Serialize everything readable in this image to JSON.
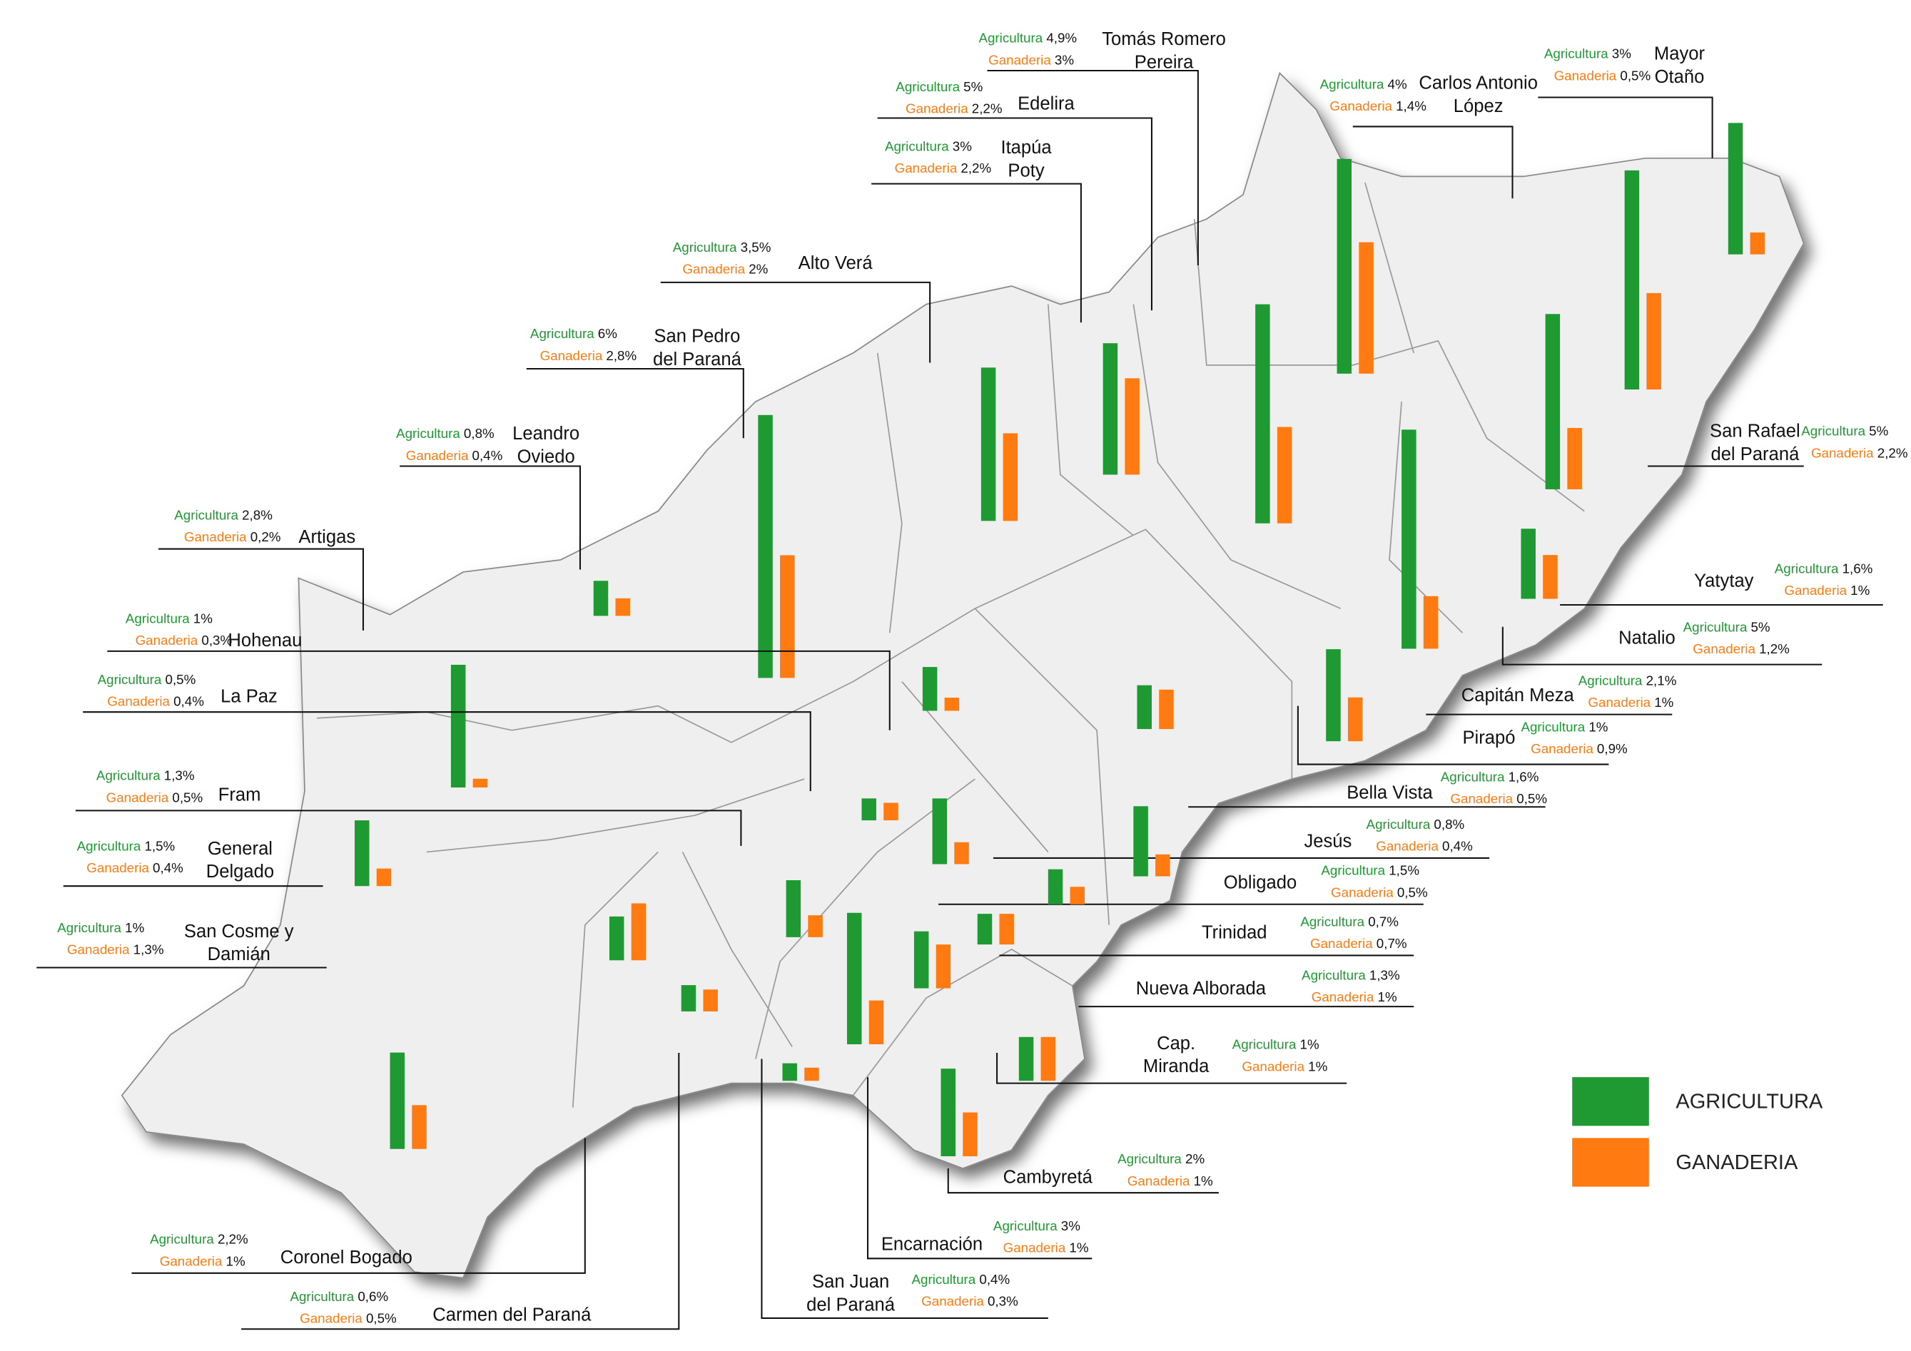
{
  "districts": [
    {
      "name": [
        "Tomás Romero",
        "Pereira"
      ],
      "agricultura": {
        "label": "Agricultura",
        "value": 4.9,
        "value_label": "4,9%"
      },
      "ganaderia": {
        "label": "Ganaderia",
        "value": 3,
        "value_label": "3%"
      }
    },
    {
      "name": [
        "Edelira"
      ],
      "agricultura": {
        "label": "Agricultura",
        "value": 5,
        "value_label": "5%"
      },
      "ganaderia": {
        "label": "Ganaderia",
        "value": 2.2,
        "value_label": "2,2%"
      }
    },
    {
      "name": [
        "Itapúa",
        "Poty"
      ],
      "agricultura": {
        "label": "Agricultura",
        "value": 3,
        "value_label": "3%"
      },
      "ganaderia": {
        "label": "Ganaderia",
        "value": 2.2,
        "value_label": "2,2%"
      }
    },
    {
      "name": [
        "Alto Verá"
      ],
      "agricultura": {
        "label": "Agricultura",
        "value": 3.5,
        "value_label": "3,5%"
      },
      "ganaderia": {
        "label": "Ganaderia",
        "value": 2,
        "value_label": "2%"
      }
    },
    {
      "name": [
        "San Pedro",
        "del Paraná"
      ],
      "agricultura": {
        "label": "Agricultura",
        "value": 6,
        "value_label": "6%"
      },
      "ganaderia": {
        "label": "Ganaderia",
        "value": 2.8,
        "value_label": "2,8%"
      }
    },
    {
      "name": [
        "Leandro",
        "Oviedo"
      ],
      "agricultura": {
        "label": "Agricultura",
        "value": 0.8,
        "value_label": "0,8%"
      },
      "ganaderia": {
        "label": "Ganaderia",
        "value": 0.4,
        "value_label": "0,4%"
      }
    },
    {
      "name": [
        "Artigas"
      ],
      "agricultura": {
        "label": "Agricultura",
        "value": 2.8,
        "value_label": "2,8%"
      },
      "ganaderia": {
        "label": "Ganaderia",
        "value": 0.2,
        "value_label": "0,2%"
      }
    },
    {
      "name": [
        "Hohenau"
      ],
      "agricultura": {
        "label": "Agricultura",
        "value": 1,
        "value_label": "1%"
      },
      "ganaderia": {
        "label": "Ganaderia",
        "value": 0.3,
        "value_label": "0,3%"
      }
    },
    {
      "name": [
        "La Paz"
      ],
      "agricultura": {
        "label": "Agricultura",
        "value": 0.5,
        "value_label": "0,5%"
      },
      "ganaderia": {
        "label": "Ganaderia",
        "value": 0.4,
        "value_label": "0,4%"
      }
    },
    {
      "name": [
        "Fram"
      ],
      "agricultura": {
        "label": "Agricultura",
        "value": 1.3,
        "value_label": "1,3%"
      },
      "ganaderia": {
        "label": "Ganaderia",
        "value": 0.5,
        "value_label": "0,5%"
      }
    },
    {
      "name": [
        "General",
        "Delgado"
      ],
      "agricultura": {
        "label": "Agricultura",
        "value": 1.5,
        "value_label": "1,5%"
      },
      "ganaderia": {
        "label": "Ganaderia",
        "value": 0.4,
        "value_label": "0,4%"
      }
    },
    {
      "name": [
        "San Cosme y",
        "Damián"
      ],
      "agricultura": {
        "label": "Agricultura",
        "value": 1,
        "value_label": "1%"
      },
      "ganaderia": {
        "label": "Ganaderia",
        "value": 1.3,
        "value_label": "1,3%"
      }
    },
    {
      "name": [
        "Coronel Bogado"
      ],
      "agricultura": {
        "label": "Agricultura",
        "value": 2.2,
        "value_label": "2,2%"
      },
      "ganaderia": {
        "label": "Ganaderia",
        "value": 1,
        "value_label": "1%"
      }
    },
    {
      "name": [
        "Carmen del Paraná"
      ],
      "agricultura": {
        "label": "Agricultura",
        "value": 0.6,
        "value_label": "0,6%"
      },
      "ganaderia": {
        "label": "Ganaderia",
        "value": 0.5,
        "value_label": "0,5%"
      }
    },
    {
      "name": [
        "San Juan",
        "del Paraná"
      ],
      "agricultura": {
        "label": "Agricultura",
        "value": 0.4,
        "value_label": "0,4%"
      },
      "ganaderia": {
        "label": "Ganaderia",
        "value": 0.3,
        "value_label": "0,3%"
      }
    },
    {
      "name": [
        "Encarnación"
      ],
      "agricultura": {
        "label": "Agricultura",
        "value": 3,
        "value_label": "3%"
      },
      "ganaderia": {
        "label": "Ganaderia",
        "value": 1,
        "value_label": "1%"
      }
    },
    {
      "name": [
        "Cambyretá"
      ],
      "agricultura": {
        "label": "Agricultura",
        "value": 2,
        "value_label": "2%"
      },
      "ganaderia": {
        "label": "Ganaderia",
        "value": 1,
        "value_label": "1%"
      }
    },
    {
      "name": [
        "Cap.",
        "Miranda"
      ],
      "agricultura": {
        "label": "Agricultura",
        "value": 1,
        "value_label": "1%"
      },
      "ganaderia": {
        "label": "Ganaderia",
        "value": 1,
        "value_label": "1%"
      }
    },
    {
      "name": [
        "Nueva Alborada"
      ],
      "agricultura": {
        "label": "Agricultura",
        "value": 1.3,
        "value_label": "1,3%"
      },
      "ganaderia": {
        "label": "Ganaderia",
        "value": 1,
        "value_label": "1%"
      }
    },
    {
      "name": [
        "Trinidad"
      ],
      "agricultura": {
        "label": "Agricultura",
        "value": 0.7,
        "value_label": "0,7%"
      },
      "ganaderia": {
        "label": "Ganaderia",
        "value": 0.7,
        "value_label": "0,7%"
      }
    },
    {
      "name": [
        "Obligado"
      ],
      "agricultura": {
        "label": "Agricultura",
        "value": 1.5,
        "value_label": "1,5%"
      },
      "ganaderia": {
        "label": "Ganaderia",
        "value": 0.5,
        "value_label": "0,5%"
      }
    },
    {
      "name": [
        "Jesús"
      ],
      "agricultura": {
        "label": "Agricultura",
        "value": 0.8,
        "value_label": "0,8%"
      },
      "ganaderia": {
        "label": "Ganaderia",
        "value": 0.4,
        "value_label": "0,4%"
      }
    },
    {
      "name": [
        "Bella Vista"
      ],
      "agricultura": {
        "label": "Agricultura",
        "value": 1.6,
        "value_label": "1,6%"
      },
      "ganaderia": {
        "label": "Ganaderia",
        "value": 0.5,
        "value_label": "0,5%"
      }
    },
    {
      "name": [
        "Pirapó"
      ],
      "agricultura": {
        "label": "Agricultura",
        "value": 1,
        "value_label": "1%"
      },
      "ganaderia": {
        "label": "Ganaderia",
        "value": 0.9,
        "value_label": "0,9%"
      }
    },
    {
      "name": [
        "Capitán Meza"
      ],
      "agricultura": {
        "label": "Agricultura",
        "value": 2.1,
        "value_label": "2,1%"
      },
      "ganaderia": {
        "label": "Ganaderia",
        "value": 1,
        "value_label": "1%"
      }
    },
    {
      "name": [
        "Natalio"
      ],
      "agricultura": {
        "label": "Agricultura",
        "value": 5,
        "value_label": "5%"
      },
      "ganaderia": {
        "label": "Ganaderia",
        "value": 1.2,
        "value_label": "1,2%"
      }
    },
    {
      "name": [
        "Yatytay"
      ],
      "agricultura": {
        "label": "Agricultura",
        "value": 1.6,
        "value_label": "1,6%"
      },
      "ganaderia": {
        "label": "Ganaderia",
        "value": 1,
        "value_label": "1%"
      }
    },
    {
      "name": [
        "San Rafael",
        "del Paraná"
      ],
      "agricultura": {
        "label": "Agricultura",
        "value": 5,
        "value_label": "5%"
      },
      "ganaderia": {
        "label": "Ganaderia",
        "value": 2.2,
        "value_label": "2,2%"
      }
    },
    {
      "name": [
        "Carlos Antonio",
        "López"
      ],
      "agricultura": {
        "label": "Agricultura",
        "value": 4,
        "value_label": "4%"
      },
      "ganaderia": {
        "label": "Ganaderia",
        "value": 1.4,
        "value_label": "1,4%"
      }
    },
    {
      "name": [
        "Mayor",
        "Otaño"
      ],
      "agricultura": {
        "label": "Agricultura",
        "value": 3,
        "value_label": "3%"
      },
      "ganaderia": {
        "label": "Ganaderia",
        "value": 0.5,
        "value_label": "0,5%"
      }
    }
  ],
  "legend": {
    "items": [
      {
        "label": "AGRICULTURA",
        "color": "#1f9a32"
      },
      {
        "label": "GANADERIA",
        "color": "#ff7b12"
      }
    ]
  }
}
